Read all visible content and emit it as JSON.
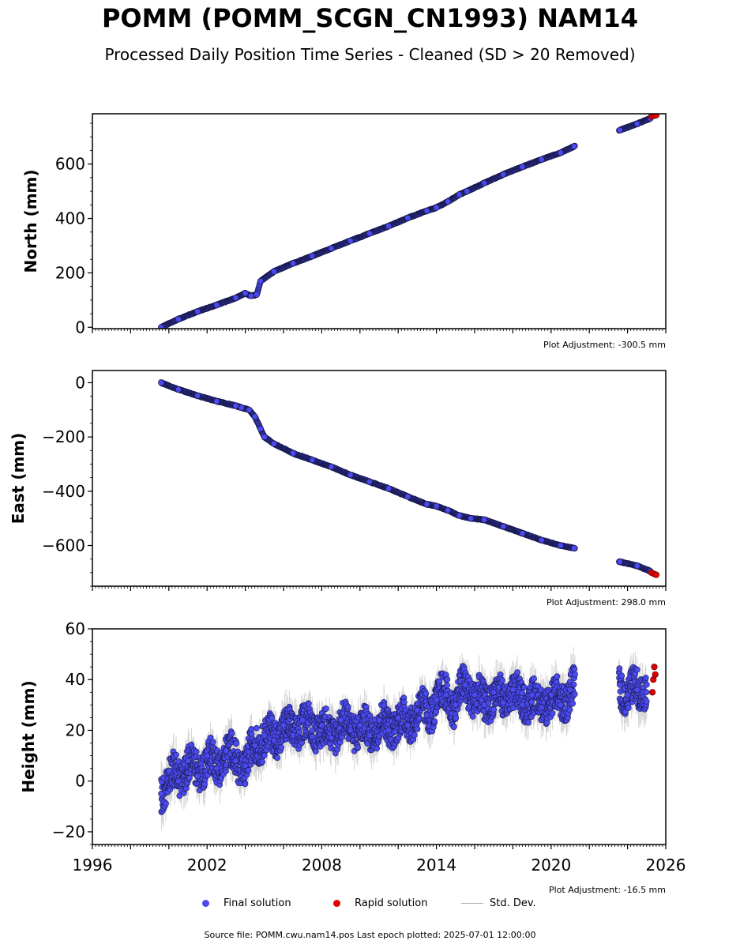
{
  "header": {
    "title": "POMM (POMM_SCGN_CN1993) NAM14",
    "subtitle": "Processed Daily Position Time Series - Cleaned (SD > 20 Removed)"
  },
  "chart_data": [
    {
      "type": "scatter",
      "ylabel": "North (mm)",
      "xlim": [
        1996,
        2026
      ],
      "ylim": [
        -5,
        785
      ],
      "yticks": [
        0,
        200,
        400,
        600
      ],
      "adjustment": "Plot Adjustment: -300.5 mm",
      "series": [
        {
          "name": "Final solution",
          "x": [
            1999.6,
            2000.5,
            2001.5,
            2002.5,
            2003.5,
            2004.0,
            2004.3,
            2004.6,
            2004.8,
            2005.5,
            2006.5,
            2007.5,
            2008.5,
            2009.5,
            2010.5,
            2011.5,
            2012.5,
            2013.5,
            2014.0,
            2014.6,
            2015.2,
            2015.6,
            2016.5,
            2017.5,
            2018.5,
            2019.5,
            2020.5,
            2021.2,
            2023.6,
            2024.5,
            2025.2
          ],
          "y": [
            0,
            30,
            58,
            82,
            108,
            125,
            115,
            120,
            170,
            205,
            235,
            262,
            290,
            318,
            345,
            372,
            402,
            428,
            440,
            462,
            488,
            500,
            530,
            562,
            590,
            617,
            642,
            665,
            725,
            748,
            768
          ]
        },
        {
          "name": "Rapid solution",
          "x": [
            2025.25,
            2025.4,
            2025.5
          ],
          "y": [
            775,
            778,
            780
          ]
        }
      ]
    },
    {
      "type": "scatter",
      "ylabel": "East (mm)",
      "xlim": [
        1996,
        2026
      ],
      "ylim": [
        -750,
        45
      ],
      "yticks": [
        0,
        -200,
        -400,
        -600
      ],
      "tick_labels": [
        "0",
        "−200",
        "−400",
        "−600"
      ],
      "adjustment": "Plot Adjustment: 298.0 mm",
      "series": [
        {
          "name": "Final solution",
          "x": [
            1999.6,
            2000.5,
            2001.5,
            2002.5,
            2003.5,
            2003.8,
            2004.2,
            2004.5,
            2004.8,
            2005.0,
            2005.5,
            2006.5,
            2007.5,
            2008.5,
            2009.5,
            2010.5,
            2011.5,
            2012.5,
            2013.5,
            2014.0,
            2014.6,
            2015.2,
            2015.8,
            2016.5,
            2017.5,
            2018.5,
            2019.5,
            2020.5,
            2021.2,
            2023.6,
            2024.5,
            2025.2
          ],
          "y": [
            0,
            -25,
            -48,
            -68,
            -85,
            -92,
            -100,
            -125,
            -170,
            -200,
            -225,
            -260,
            -285,
            -310,
            -340,
            -365,
            -390,
            -420,
            -448,
            -455,
            -470,
            -490,
            -500,
            -505,
            -530,
            -555,
            -580,
            -600,
            -610,
            -660,
            -675,
            -695
          ]
        },
        {
          "name": "Rapid solution",
          "x": [
            2025.25,
            2025.4,
            2025.5
          ],
          "y": [
            -700,
            -705,
            -708
          ]
        }
      ]
    },
    {
      "type": "scatter",
      "ylabel": "Height (mm)",
      "xlim": [
        1996,
        2026
      ],
      "ylim": [
        -25,
        60
      ],
      "yticks": [
        -20,
        0,
        20,
        40,
        60
      ],
      "tick_labels": [
        "−20",
        "0",
        "20",
        "40",
        "60"
      ],
      "xticks": [
        1996,
        2002,
        2008,
        2014,
        2020,
        2026
      ],
      "adjustment": "Plot Adjustment: -16.5 mm",
      "series": [
        {
          "name": "Final solution",
          "x": [
            1999.6,
            2000.0,
            2000.5,
            2001.0,
            2001.5,
            2002.0,
            2002.5,
            2003.0,
            2003.5,
            2004.0,
            2004.5,
            2005.0,
            2005.5,
            2006.0,
            2006.5,
            2007.0,
            2007.5,
            2008.0,
            2008.5,
            2009.0,
            2009.5,
            2010.0,
            2010.5,
            2011.0,
            2011.5,
            2012.0,
            2012.5,
            2013.0,
            2013.5,
            2014.0,
            2014.5,
            2015.0,
            2015.5,
            2016.0,
            2016.5,
            2017.0,
            2017.5,
            2018.0,
            2018.5,
            2019.0,
            2019.5,
            2020.0,
            2020.5,
            2021.0,
            2023.6,
            2024.0,
            2024.5,
            2025.0
          ],
          "y": [
            -5,
            4,
            0,
            8,
            2,
            10,
            5,
            12,
            8,
            6,
            14,
            18,
            16,
            22,
            18,
            24,
            20,
            22,
            17,
            24,
            20,
            22,
            18,
            24,
            20,
            25,
            22,
            28,
            26,
            32,
            34,
            30,
            38,
            34,
            30,
            35,
            31,
            36,
            30,
            34,
            29,
            34,
            30,
            36,
            38,
            34,
            36,
            38
          ]
        },
        {
          "name": "Rapid solution",
          "x": [
            2025.3,
            2025.35,
            2025.4,
            2025.45
          ],
          "y": [
            35,
            40,
            45,
            42
          ]
        }
      ]
    }
  ],
  "legend": {
    "final_label": "Final solution",
    "rapid_label": "Rapid solution",
    "sd_label": "Std. Dev.",
    "final_color": "#4a4aee",
    "rapid_color": "#e00000",
    "sd_color": "#b0b0b0"
  },
  "footer": {
    "source": "Source file: POMM.cwu.nam14.pos  Last epoch plotted: 2025-07-01 12:00:00"
  }
}
